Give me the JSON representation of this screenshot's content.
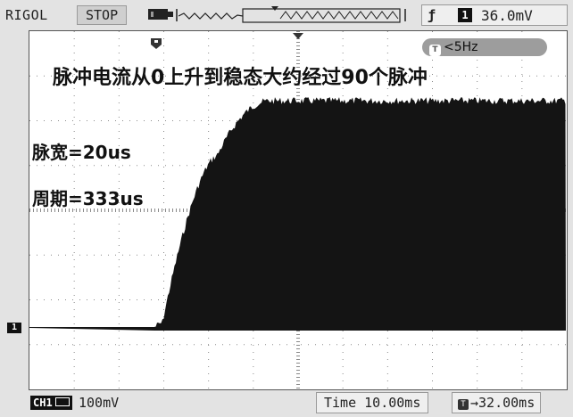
{
  "header": {
    "brand": "RIGOL",
    "run_state": "STOP",
    "trigger_edge_glyph": "ƒ",
    "trigger_channel": "1",
    "trigger_level": "36.0mV"
  },
  "screen": {
    "frequency_readout": "<5Hz",
    "annotations": {
      "title": "脉冲电流从0上升到稳态大约经过90个脉冲",
      "pulse_width": "脉宽=20us",
      "period": "周期=333us"
    },
    "ground_marker": "1"
  },
  "footer": {
    "channel_label": "CH1",
    "channel_scale": "100mV",
    "timebase": "Time 10.00ms",
    "trigger_position": "→32.00ms"
  },
  "colors": {
    "background": "#e3e3e3",
    "screen": "#ffffff",
    "trace": "#141414",
    "grid": "#8a8a8a"
  },
  "icons": {
    "memory": "memory-depth-icon",
    "trigger_flag": "trigger-flag-icon",
    "edge": "rising-edge-icon"
  }
}
